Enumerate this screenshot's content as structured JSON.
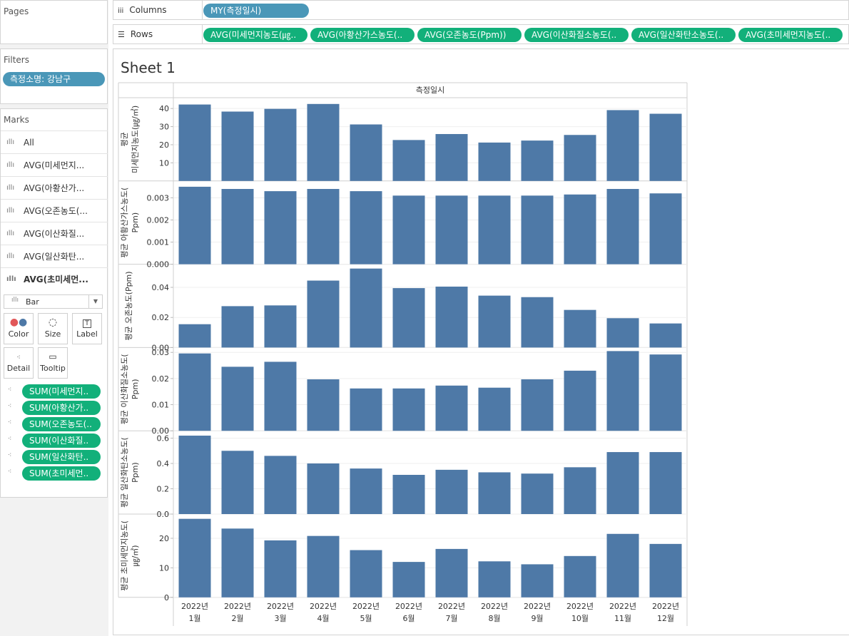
{
  "pages": {
    "title": "Pages"
  },
  "filters": {
    "title": "Filters",
    "pill": "측정소명: 강남구"
  },
  "marks": {
    "title": "Marks",
    "items": [
      {
        "label": "All",
        "bold": false
      },
      {
        "label": "AVG(미세먼지...",
        "bold": false
      },
      {
        "label": "AVG(아황산가...",
        "bold": false
      },
      {
        "label": "AVG(오존농도(...",
        "bold": false
      },
      {
        "label": "AVG(이산화질...",
        "bold": false
      },
      {
        "label": "AVG(일산화탄...",
        "bold": false
      },
      {
        "label": "AVG(초미세먼...",
        "bold": true
      }
    ],
    "type_select": "Bar",
    "cards": [
      "Color",
      "Size",
      "Label",
      "Detail",
      "Tooltip"
    ],
    "fields": [
      "SUM(미세먼지..",
      "SUM(아황산가..",
      "SUM(오존농도(..",
      "SUM(이산화질..",
      "SUM(일산화탄..",
      "SUM(초미세먼.."
    ]
  },
  "columns_shelf": {
    "label": "Columns",
    "pills": [
      "MY(측정일시)"
    ]
  },
  "rows_shelf": {
    "label": "Rows",
    "pills": [
      "AVG(미세먼지농도(㎍..",
      "AVG(아황산가스농도(..",
      "AVG(오존농도(Ppm))",
      "AVG(이산화질소농도(..",
      "AVG(일산화탄소농도(..",
      "AVG(초미세먼지농도(.."
    ]
  },
  "sheet": {
    "title": "Sheet 1",
    "header": "측정일시"
  },
  "colors": {
    "bar": "#4e79a7",
    "green_pill": "#12b07a",
    "blue_pill": "#4a97b8"
  },
  "chart_data": {
    "type": "bar",
    "categories": [
      [
        "2022년",
        "1월"
      ],
      [
        "2022년",
        "2월"
      ],
      [
        "2022년",
        "3월"
      ],
      [
        "2022년",
        "4월"
      ],
      [
        "2022년",
        "5월"
      ],
      [
        "2022년",
        "6월"
      ],
      [
        "2022년",
        "7월"
      ],
      [
        "2022년",
        "8월"
      ],
      [
        "2022년",
        "9월"
      ],
      [
        "2022년",
        "10월"
      ],
      [
        "2022년",
        "11월"
      ],
      [
        "2022년",
        "12월"
      ]
    ],
    "series": [
      {
        "ylabel": [
          "평균",
          "미세먼지농도(㎍/㎥)"
        ],
        "ylim": [
          0,
          44
        ],
        "ticks": [
          10,
          20,
          30,
          40
        ],
        "tick_labels": [
          "10",
          "20",
          "30",
          "40"
        ],
        "values": [
          42.2,
          38.3,
          39.8,
          42.5,
          31.2,
          22.6,
          25.9,
          21.2,
          22.3,
          25.4,
          39.1,
          37.1
        ]
      },
      {
        "ylabel": [
          "평균 아황산가스농도(",
          "Ppm)"
        ],
        "ylim": [
          0,
          0.0036
        ],
        "ticks": [
          0,
          0.001,
          0.002,
          0.003
        ],
        "tick_labels": [
          "0.000",
          "0.001",
          "0.002",
          "0.003"
        ],
        "values": [
          0.0035,
          0.0034,
          0.0033,
          0.0034,
          0.0033,
          0.0031,
          0.0031,
          0.0031,
          0.0031,
          0.00315,
          0.0034,
          0.0032
        ]
      },
      {
        "ylabel": [
          "평균 오존농도(Ppm)"
        ],
        "ylim": [
          0,
          0.053
        ],
        "ticks": [
          0,
          0.02,
          0.04
        ],
        "tick_labels": [
          "0.00",
          "0.02",
          "0.04"
        ],
        "values": [
          0.0155,
          0.0275,
          0.028,
          0.0445,
          0.0525,
          0.0395,
          0.0405,
          0.0345,
          0.0335,
          0.025,
          0.0195,
          0.016
        ]
      },
      {
        "ylabel": [
          "평균 이산화질소농도(",
          "Ppm)"
        ],
        "ylim": [
          0,
          0.0305
        ],
        "ticks": [
          0,
          0.01,
          0.02,
          0.03
        ],
        "tick_labels": [
          "0.00",
          "0.01",
          "0.02",
          "0.03"
        ],
        "values": [
          0.0296,
          0.0245,
          0.0264,
          0.0197,
          0.0162,
          0.0162,
          0.0173,
          0.0165,
          0.0197,
          0.023,
          0.0305,
          0.0292
        ]
      },
      {
        "ylabel": [
          "평균 일산화탄소농도(",
          "Ppm)"
        ],
        "ylim": [
          0,
          0.63
        ],
        "ticks": [
          0,
          0.2,
          0.4,
          0.6
        ],
        "tick_labels": [
          "0.0",
          "0.2",
          "0.4",
          "0.6"
        ],
        "values": [
          0.62,
          0.5,
          0.46,
          0.4,
          0.36,
          0.31,
          0.35,
          0.33,
          0.32,
          0.37,
          0.49,
          0.49
        ]
      },
      {
        "ylabel": [
          "평균 초미세먼지농도(",
          "㎍/㎥)"
        ],
        "ylim": [
          0,
          27
        ],
        "ticks": [
          0,
          10,
          20
        ],
        "tick_labels": [
          "0",
          "10",
          "20"
        ],
        "values": [
          26.6,
          23.3,
          19.3,
          20.8,
          16.0,
          12.0,
          16.4,
          12.2,
          11.2,
          14.0,
          21.5,
          18.1
        ]
      }
    ]
  }
}
